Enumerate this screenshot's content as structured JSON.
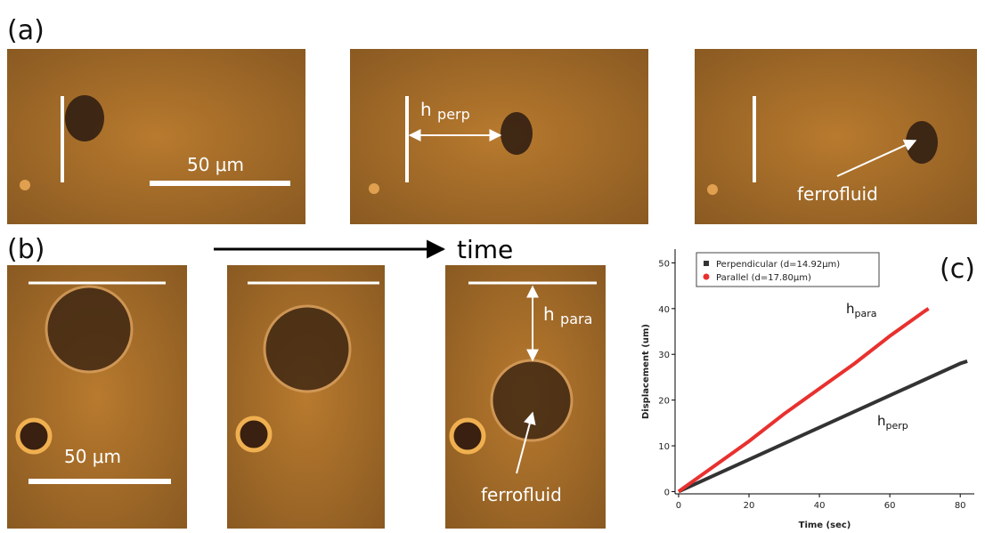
{
  "panel_a": {
    "label": "(a)",
    "scale_bar": "50 μm",
    "h_perp": {
      "main": "h",
      "sub": "perp"
    },
    "ferrofluid": "ferrofluid"
  },
  "panel_b": {
    "label": "(b)",
    "time": "time",
    "scale_bar": "50 μm",
    "h_para": {
      "main": "h",
      "sub": "para"
    },
    "ferrofluid": "ferrofluid"
  },
  "panel_c": {
    "label": "(c)"
  },
  "chart_data": {
    "type": "line",
    "x_label": "Time (sec)",
    "y_label": "Displacement (um)",
    "xlim": [
      -1,
      84
    ],
    "ylim": [
      -0.5,
      53
    ],
    "xticks": [
      0,
      20,
      40,
      60,
      80
    ],
    "yticks": [
      0,
      10,
      20,
      30,
      40,
      50
    ],
    "legend": "top-left",
    "annotations": [
      {
        "main": "h",
        "sub": "para"
      },
      {
        "main": "h",
        "sub": "perp"
      }
    ],
    "series": [
      {
        "name": "Perpendicular (d=14.92μm)",
        "color": "#333333",
        "marker": "square",
        "x": [
          0,
          10,
          20,
          30,
          40,
          50,
          60,
          70,
          80,
          82
        ],
        "values": [
          0,
          3.5,
          7,
          10.5,
          14,
          17.5,
          21,
          24.5,
          28,
          28.5
        ]
      },
      {
        "name": "Parallel (d=17.80μm)",
        "color": "#e8312f",
        "marker": "circle",
        "x": [
          0,
          10,
          20,
          30,
          40,
          50,
          60,
          70,
          71
        ],
        "values": [
          0,
          5.5,
          11,
          17,
          22.5,
          28,
          34,
          39.5,
          40
        ]
      }
    ]
  }
}
